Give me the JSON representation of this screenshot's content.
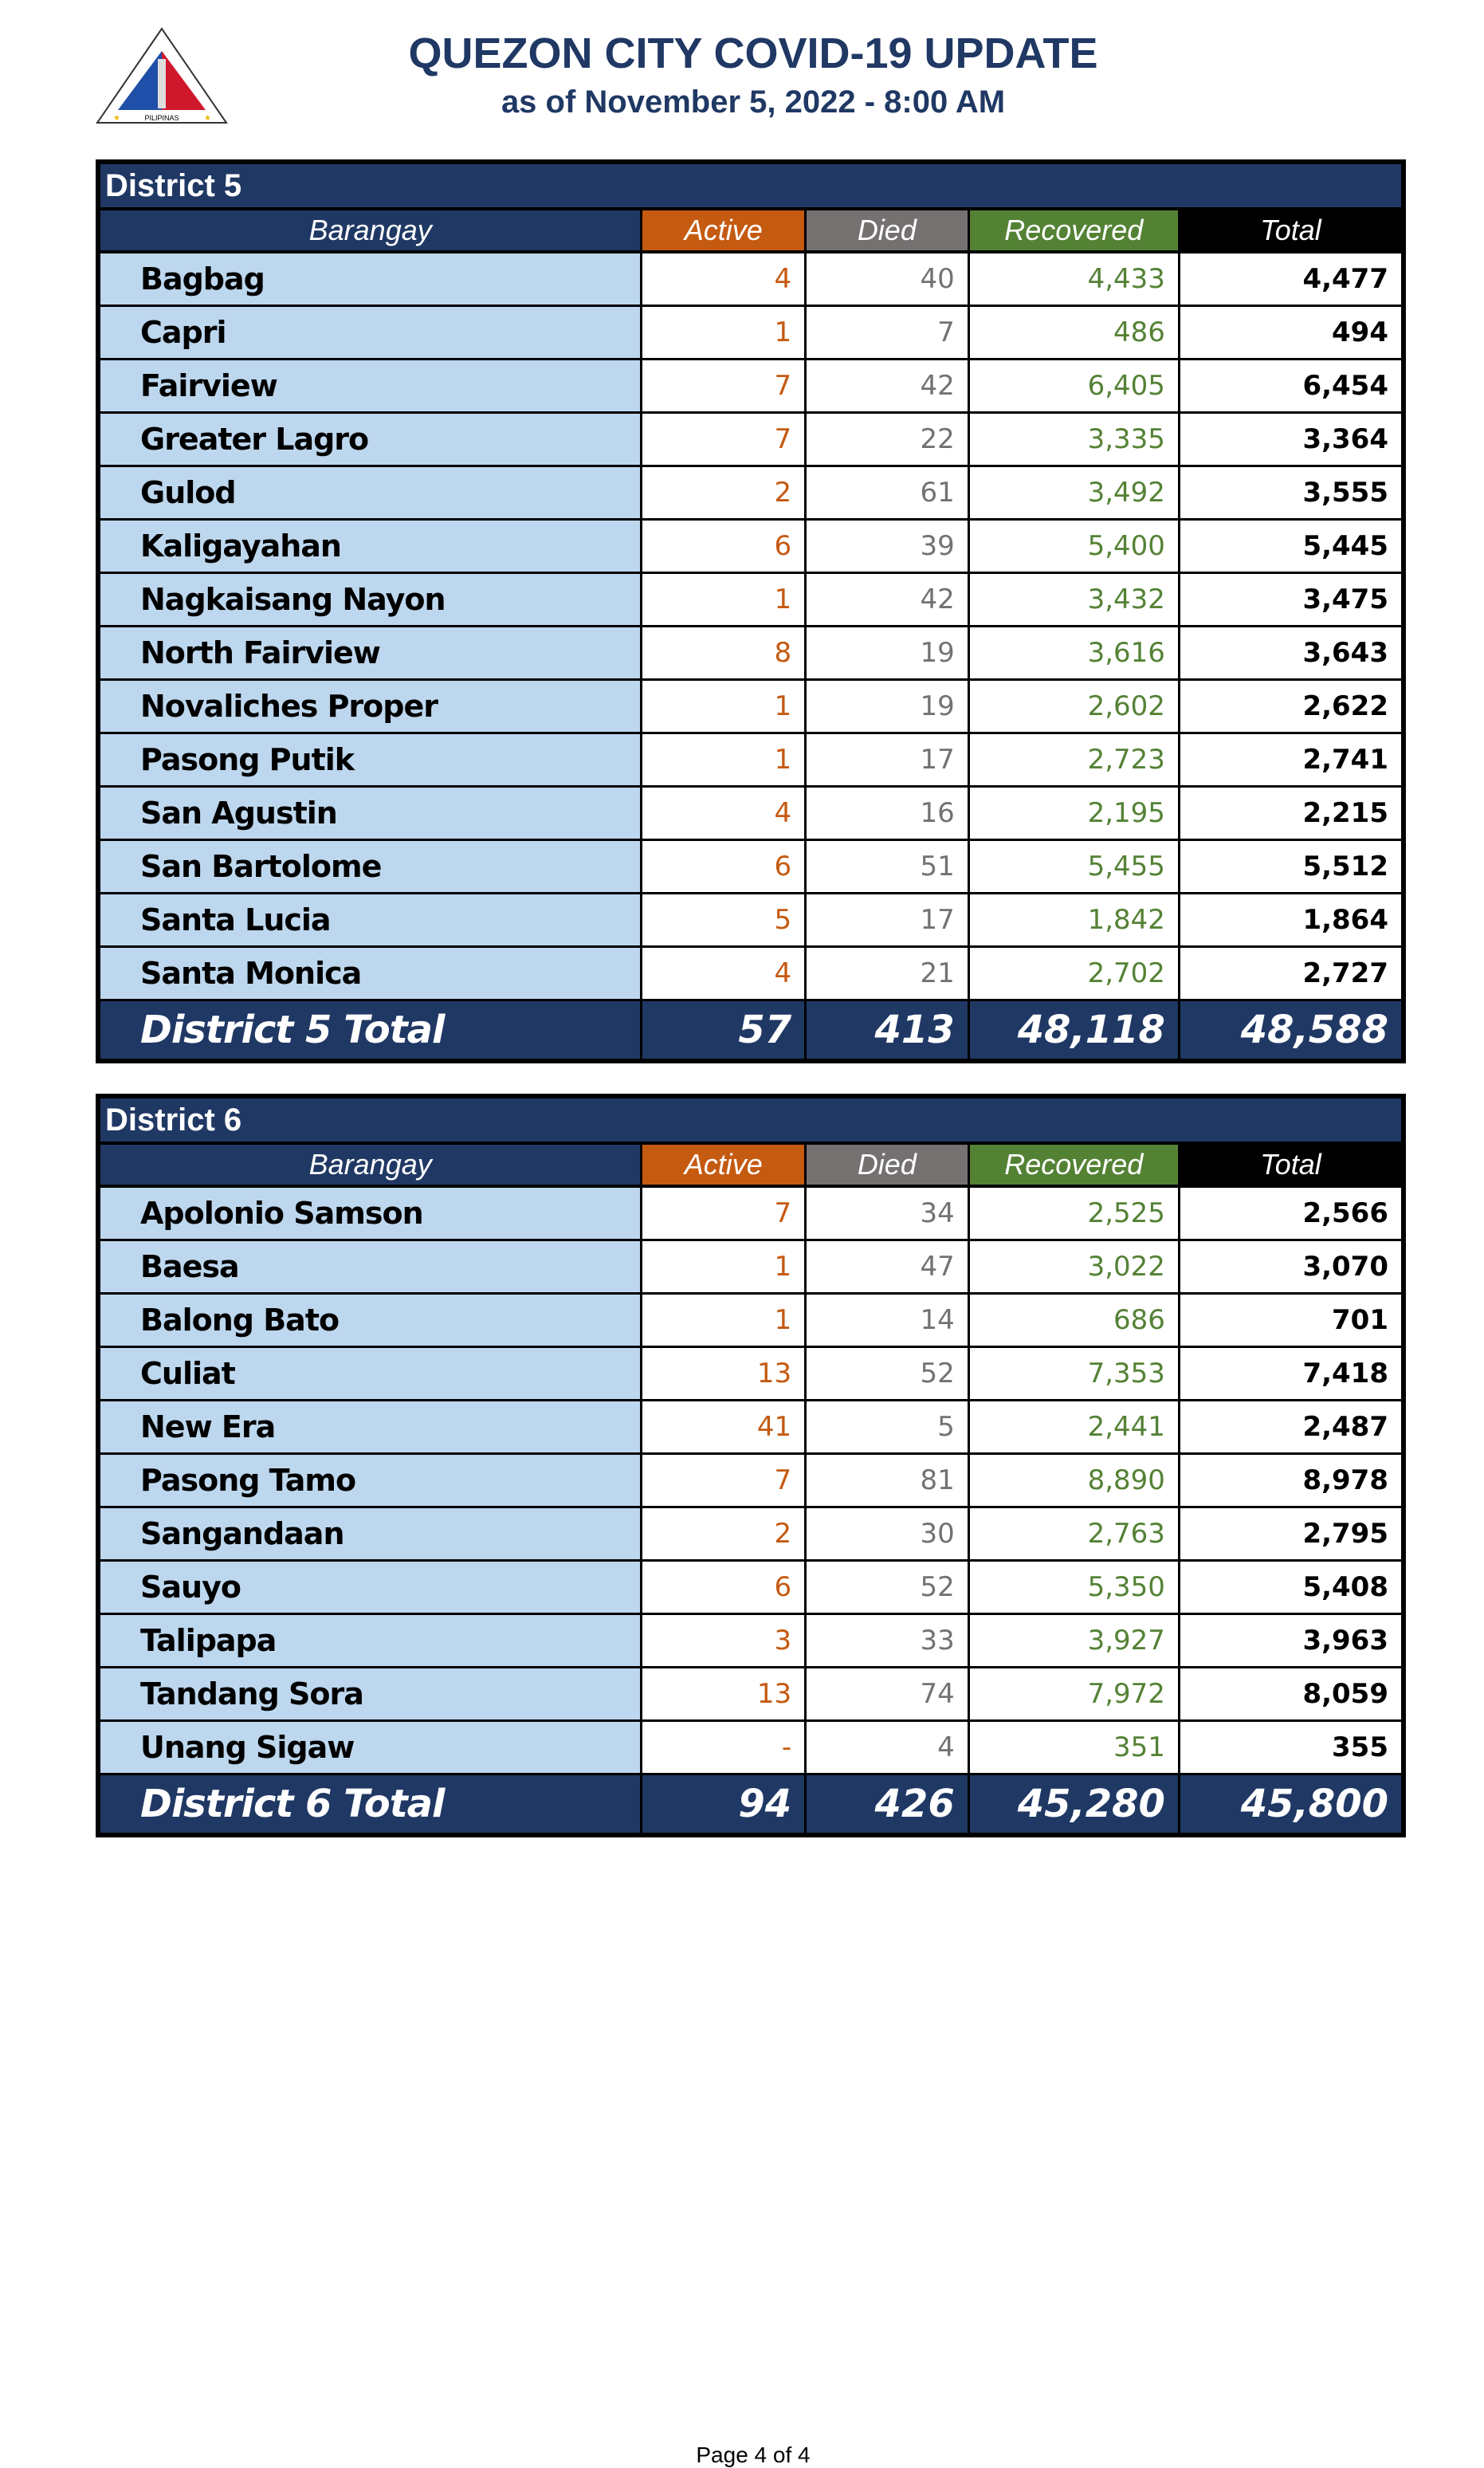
{
  "header": {
    "title": "QUEZON CITY COVID-19 UPDATE",
    "subtitle": "as of November 5, 2022 - 8:00 AM",
    "logo_text": "LUNGSOD QUEZON PILIPINAS"
  },
  "columns": [
    "Barangay",
    "Active",
    "Died",
    "Recovered",
    "Total"
  ],
  "colors": {
    "navy": "#203864",
    "active": "#c55a11",
    "died": "#757171",
    "recovered": "#548235",
    "barangay_bg": "#bdd7ee"
  },
  "districts": [
    {
      "title": "District 5",
      "rows": [
        [
          "Bagbag",
          "4",
          "40",
          "4,433",
          "4,477"
        ],
        [
          "Capri",
          "1",
          "7",
          "486",
          "494"
        ],
        [
          "Fairview",
          "7",
          "42",
          "6,405",
          "6,454"
        ],
        [
          "Greater Lagro",
          "7",
          "22",
          "3,335",
          "3,364"
        ],
        [
          "Gulod",
          "2",
          "61",
          "3,492",
          "3,555"
        ],
        [
          "Kaligayahan",
          "6",
          "39",
          "5,400",
          "5,445"
        ],
        [
          "Nagkaisang Nayon",
          "1",
          "42",
          "3,432",
          "3,475"
        ],
        [
          "North Fairview",
          "8",
          "19",
          "3,616",
          "3,643"
        ],
        [
          "Novaliches Proper",
          "1",
          "19",
          "2,602",
          "2,622"
        ],
        [
          "Pasong Putik",
          "1",
          "17",
          "2,723",
          "2,741"
        ],
        [
          "San Agustin",
          "4",
          "16",
          "2,195",
          "2,215"
        ],
        [
          "San Bartolome",
          "6",
          "51",
          "5,455",
          "5,512"
        ],
        [
          "Santa Lucia",
          "5",
          "17",
          "1,842",
          "1,864"
        ],
        [
          "Santa Monica",
          "4",
          "21",
          "2,702",
          "2,727"
        ]
      ],
      "total": [
        "District 5 Total",
        "57",
        "413",
        "48,118",
        "48,588"
      ]
    },
    {
      "title": "District 6",
      "rows": [
        [
          "Apolonio Samson",
          "7",
          "34",
          "2,525",
          "2,566"
        ],
        [
          "Baesa",
          "1",
          "47",
          "3,022",
          "3,070"
        ],
        [
          "Balong Bato",
          "1",
          "14",
          "686",
          "701"
        ],
        [
          "Culiat",
          "13",
          "52",
          "7,353",
          "7,418"
        ],
        [
          "New Era",
          "41",
          "5",
          "2,441",
          "2,487"
        ],
        [
          "Pasong Tamo",
          "7",
          "81",
          "8,890",
          "8,978"
        ],
        [
          "Sangandaan",
          "2",
          "30",
          "2,763",
          "2,795"
        ],
        [
          "Sauyo",
          "6",
          "52",
          "5,350",
          "5,408"
        ],
        [
          "Talipapa",
          "3",
          "33",
          "3,927",
          "3,963"
        ],
        [
          "Tandang Sora",
          "13",
          "74",
          "7,972",
          "8,059"
        ],
        [
          "Unang Sigaw",
          "-",
          "4",
          "351",
          "355"
        ]
      ],
      "total": [
        "District 6 Total",
        "94",
        "426",
        "45,280",
        "45,800"
      ]
    }
  ],
  "footer": "Page 4 of 4"
}
